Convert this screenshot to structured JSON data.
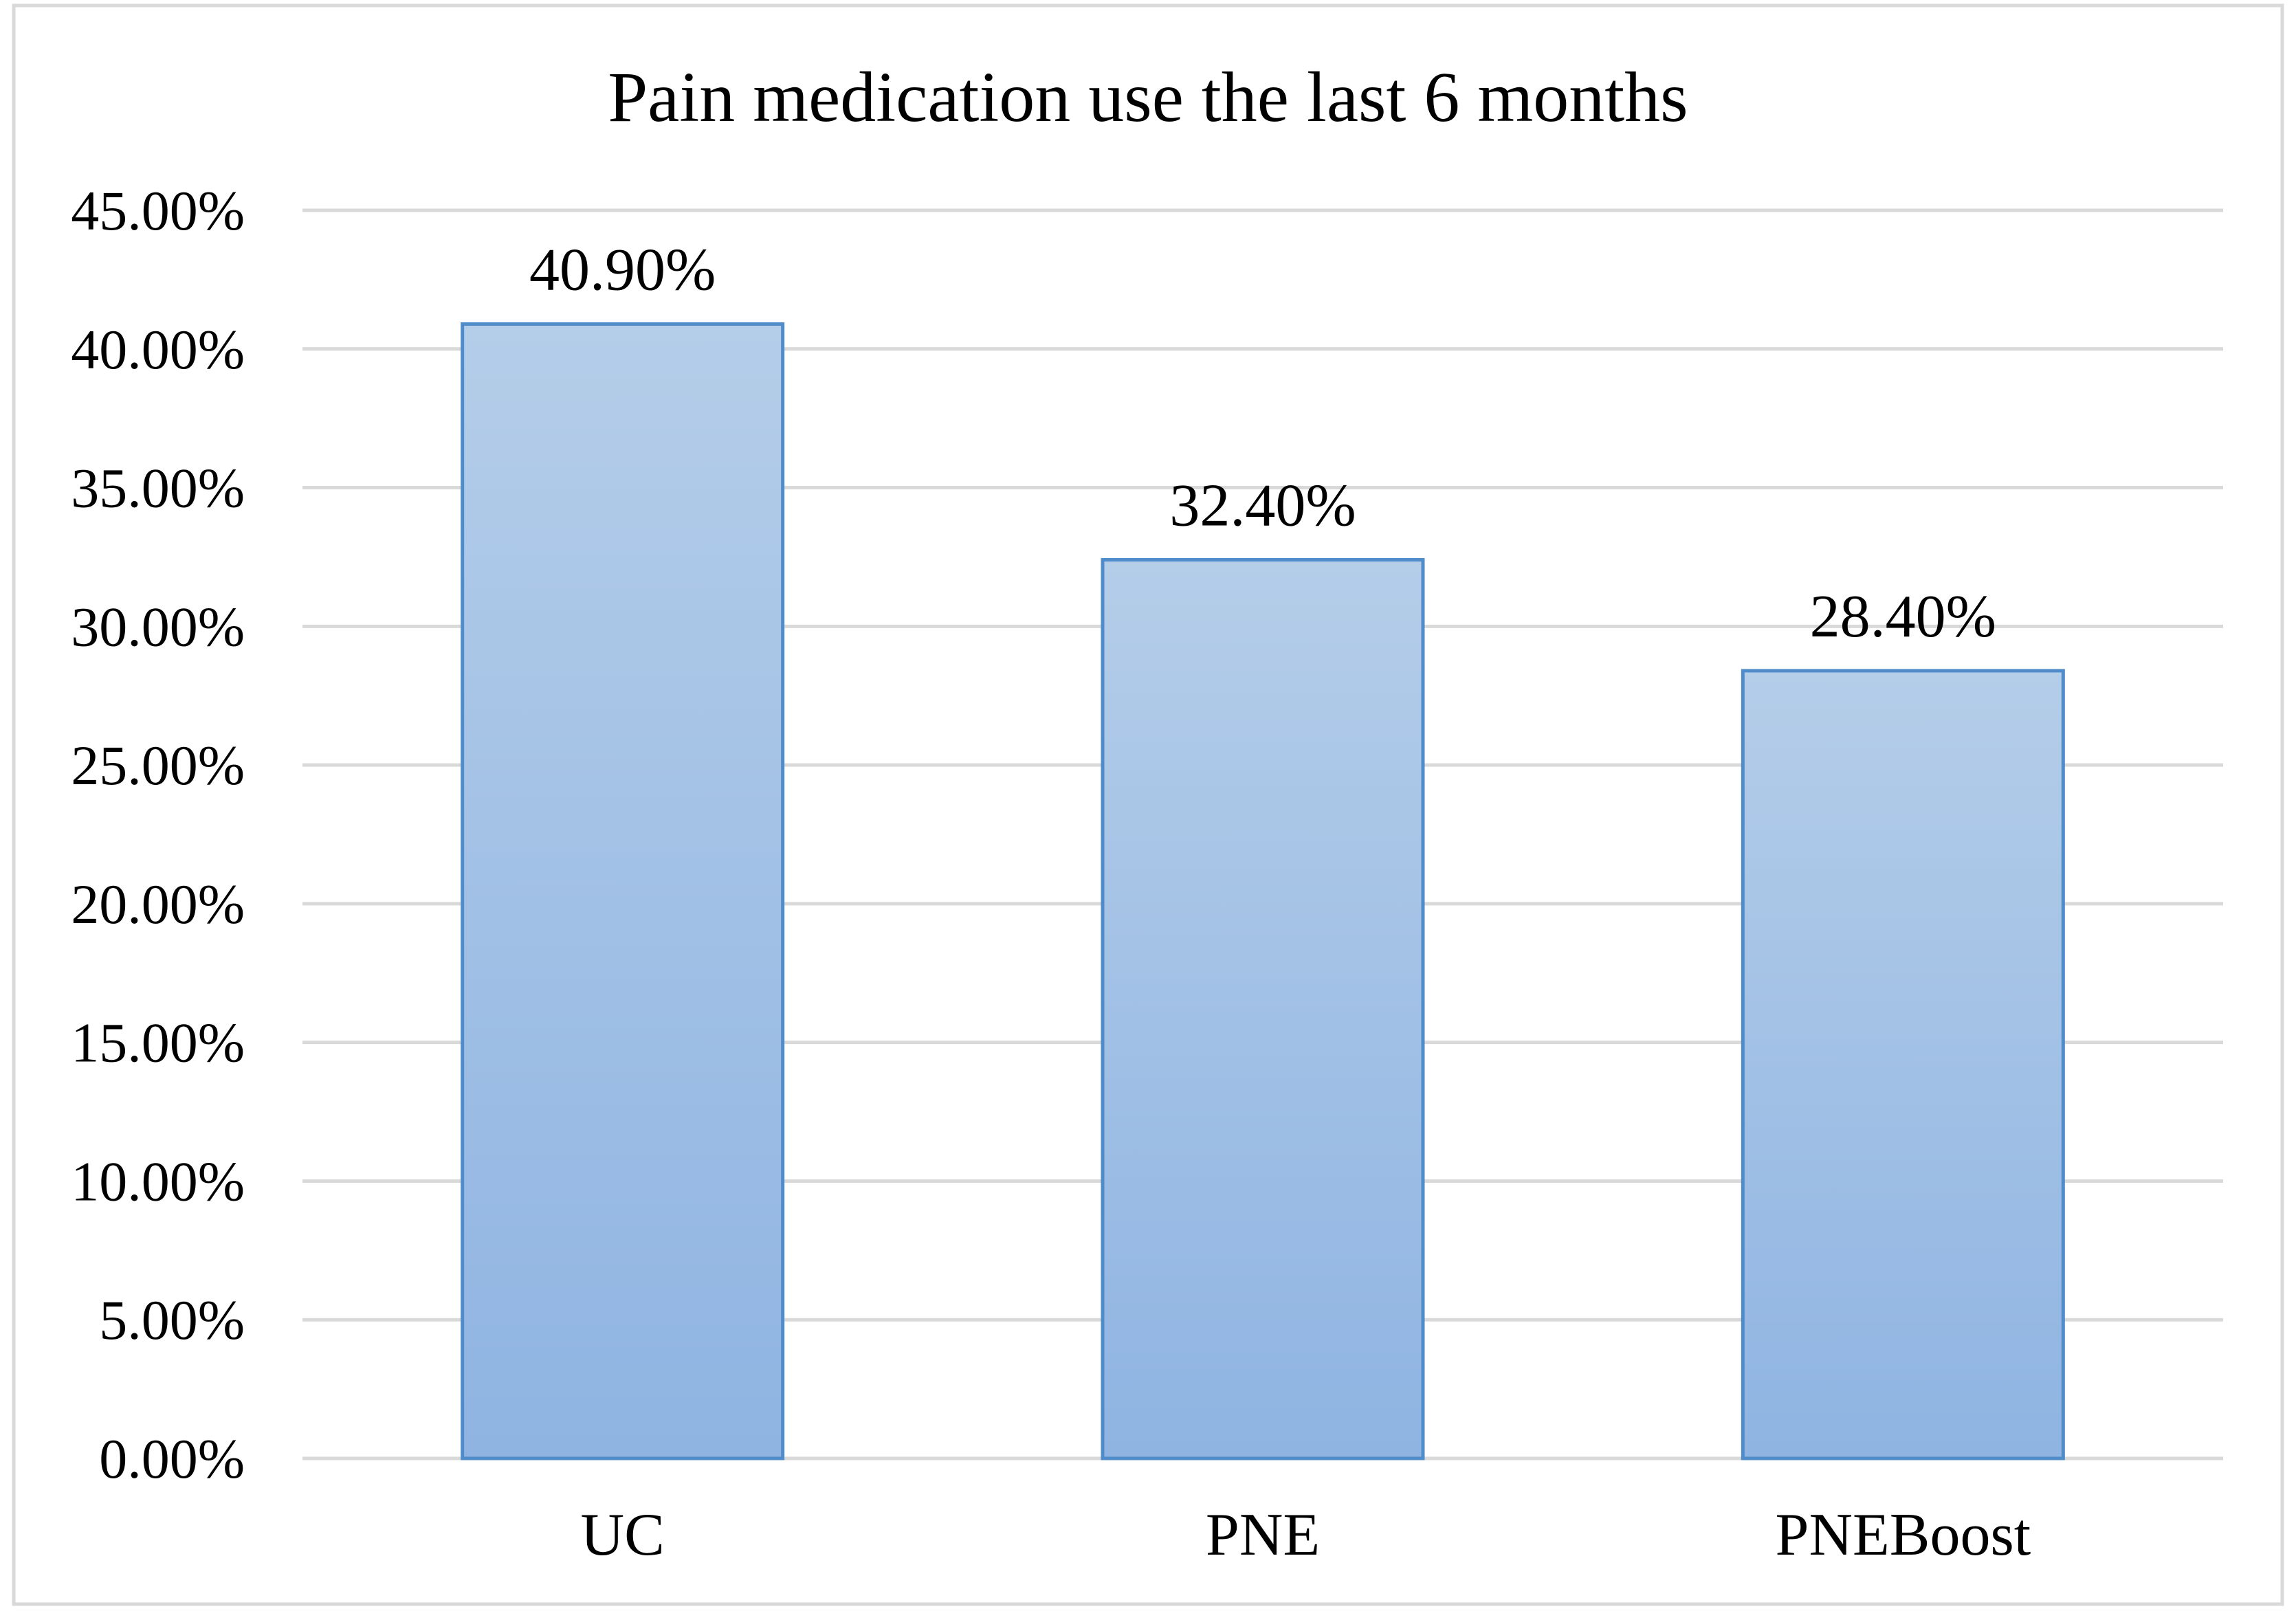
{
  "chart_data": {
    "type": "bar",
    "title": "Pain medication use the last 6 months",
    "categories": [
      "UC",
      "PNE",
      "PNEBoost"
    ],
    "values": [
      40.9,
      32.4,
      28.4
    ],
    "data_labels": [
      "40.90%",
      "32.40%",
      "28.40%"
    ],
    "ylim": [
      0,
      45
    ],
    "yticks": [
      0,
      5,
      10,
      15,
      20,
      25,
      30,
      35,
      40,
      45
    ],
    "ytick_labels": [
      "0.00%",
      "5.00%",
      "10.00%",
      "15.00%",
      "20.00%",
      "25.00%",
      "30.00%",
      "35.00%",
      "40.00%",
      "45.00%"
    ],
    "xlabel": "",
    "ylabel": "",
    "grid": true,
    "legend": "none",
    "colors": {
      "bar_top": "#b4cde9",
      "bar_bottom": "#8fb4e2",
      "bar_border": "#4f8cc9",
      "gridline": "#d9d9d9",
      "frame": "#d9d9d9"
    }
  }
}
